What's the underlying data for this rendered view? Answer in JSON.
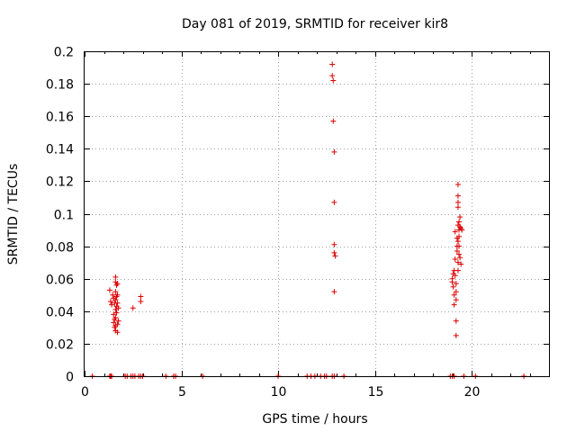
{
  "chart_data": {
    "type": "scatter",
    "title": "Day 081 of 2019, SRMTID for receiver kir8",
    "xlabel": "GPS time / hours",
    "ylabel": "SRMTID / TECUs",
    "xlim": [
      0,
      24
    ],
    "ylim": [
      0,
      0.2
    ],
    "xticks": [
      0,
      5,
      10,
      15,
      20
    ],
    "xtick_labels": [
      "0",
      "5",
      "10",
      "15",
      "20"
    ],
    "yticks": [
      0,
      0.02,
      0.04,
      0.06,
      0.08,
      0.1,
      0.12,
      0.14,
      0.16,
      0.18,
      0.2
    ],
    "ytick_labels": [
      "0",
      "0.02",
      "0.04",
      "0.06",
      "0.08",
      "0.1",
      "0.12",
      "0.14",
      "0.16",
      "0.18",
      "0.2"
    ],
    "grid": true,
    "marker": "+",
    "color": "#dd0000",
    "series": [
      {
        "name": "SRMTID",
        "points": [
          [
            1.3,
            0.053
          ],
          [
            1.35,
            0.046
          ],
          [
            1.4,
            0.044
          ],
          [
            1.45,
            0.05
          ],
          [
            1.5,
            0.048
          ],
          [
            1.5,
            0.038
          ],
          [
            1.5,
            0.033
          ],
          [
            1.55,
            0.03
          ],
          [
            1.55,
            0.035
          ],
          [
            1.55,
            0.045
          ],
          [
            1.6,
            0.058
          ],
          [
            1.6,
            0.061
          ],
          [
            1.6,
            0.052
          ],
          [
            1.6,
            0.047
          ],
          [
            1.6,
            0.041
          ],
          [
            1.6,
            0.036
          ],
          [
            1.6,
            0.031
          ],
          [
            1.6,
            0.028
          ],
          [
            1.65,
            0.056
          ],
          [
            1.65,
            0.049
          ],
          [
            1.65,
            0.043
          ],
          [
            1.65,
            0.039
          ],
          [
            1.7,
            0.032
          ],
          [
            1.7,
            0.045
          ],
          [
            1.7,
            0.05
          ],
          [
            1.7,
            0.057
          ],
          [
            1.7,
            0.027
          ],
          [
            1.75,
            0.034
          ],
          [
            1.75,
            0.042
          ],
          [
            2.5,
            0.042
          ],
          [
            2.9,
            0.046
          ],
          [
            2.9,
            0.049
          ],
          [
            12.8,
            0.192
          ],
          [
            12.8,
            0.185
          ],
          [
            12.85,
            0.182
          ],
          [
            12.85,
            0.157
          ],
          [
            12.9,
            0.138
          ],
          [
            12.9,
            0.107
          ],
          [
            12.9,
            0.081
          ],
          [
            12.9,
            0.076
          ],
          [
            12.95,
            0.074
          ],
          [
            12.9,
            0.052
          ],
          [
            19.0,
            0.06
          ],
          [
            19.0,
            0.058
          ],
          [
            19.05,
            0.063
          ],
          [
            19.05,
            0.055
          ],
          [
            19.1,
            0.05
          ],
          [
            19.1,
            0.044
          ],
          [
            19.1,
            0.065
          ],
          [
            19.15,
            0.089
          ],
          [
            19.15,
            0.072
          ],
          [
            19.15,
            0.062
          ],
          [
            19.2,
            0.057
          ],
          [
            19.2,
            0.052
          ],
          [
            19.2,
            0.047
          ],
          [
            19.2,
            0.034
          ],
          [
            19.2,
            0.025
          ],
          [
            19.25,
            0.08
          ],
          [
            19.25,
            0.077
          ],
          [
            19.25,
            0.085
          ],
          [
            19.3,
            0.093
          ],
          [
            19.3,
            0.083
          ],
          [
            19.3,
            0.07
          ],
          [
            19.3,
            0.065
          ],
          [
            19.3,
            0.118
          ],
          [
            19.3,
            0.111
          ],
          [
            19.3,
            0.107
          ],
          [
            19.3,
            0.104
          ],
          [
            19.35,
            0.095
          ],
          [
            19.35,
            0.09
          ],
          [
            19.35,
            0.086
          ],
          [
            19.35,
            0.08
          ],
          [
            19.35,
            0.075
          ],
          [
            19.4,
            0.073
          ],
          [
            19.4,
            0.098
          ],
          [
            19.4,
            0.092
          ],
          [
            19.45,
            0.069
          ],
          [
            19.45,
            0.091
          ],
          [
            19.5,
            0.09
          ],
          [
            0.4,
            0
          ],
          [
            1.3,
            0
          ],
          [
            1.35,
            0
          ],
          [
            1.4,
            0
          ],
          [
            2.1,
            0
          ],
          [
            2.2,
            0
          ],
          [
            2.4,
            0
          ],
          [
            2.5,
            0
          ],
          [
            2.6,
            0
          ],
          [
            2.8,
            0
          ],
          [
            2.9,
            0
          ],
          [
            3.0,
            0
          ],
          [
            4.2,
            0
          ],
          [
            4.6,
            0
          ],
          [
            4.7,
            0
          ],
          [
            6.1,
            0
          ],
          [
            10.0,
            0
          ],
          [
            11.5,
            0
          ],
          [
            11.7,
            0
          ],
          [
            11.9,
            0
          ],
          [
            12.2,
            0
          ],
          [
            12.4,
            0
          ],
          [
            12.5,
            0
          ],
          [
            12.8,
            0
          ],
          [
            12.9,
            0
          ],
          [
            13.4,
            0
          ],
          [
            18.9,
            0
          ],
          [
            19.0,
            0
          ],
          [
            19.1,
            0
          ],
          [
            19.6,
            0
          ],
          [
            20.2,
            0
          ],
          [
            22.7,
            0
          ]
        ]
      }
    ]
  }
}
